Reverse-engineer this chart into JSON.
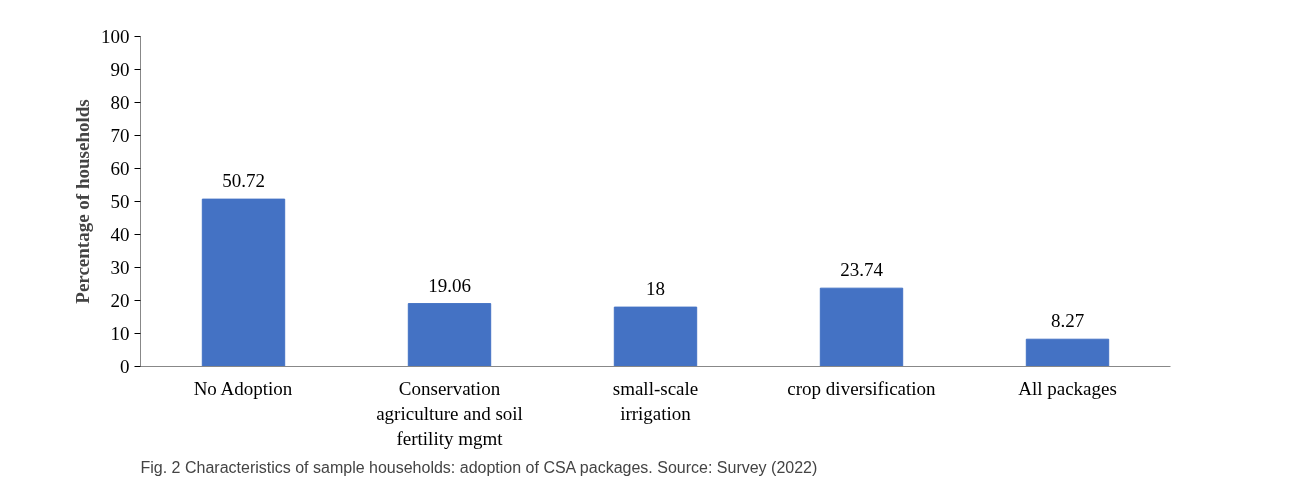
{
  "chart_data": {
    "type": "bar",
    "ylabel": "Percentage of households",
    "categories": [
      "No Adoption",
      "Conservation agriculture and soil fertility mgmt",
      "small-scale irrigation",
      "crop diversification",
      "All packages"
    ],
    "values": [
      50.72,
      19.06,
      18,
      23.74,
      8.27
    ],
    "color": "#4472c4",
    "data_labels": true,
    "ylim": [
      0,
      100
    ],
    "yticks": [
      0,
      10,
      20,
      30,
      40,
      50,
      60,
      70,
      80,
      90,
      100
    ],
    "grid": false,
    "annotations": [
      "Fig. 2  Characteristics of sample households: adoption of CSA packages. Source: Survey (2022)"
    ]
  }
}
